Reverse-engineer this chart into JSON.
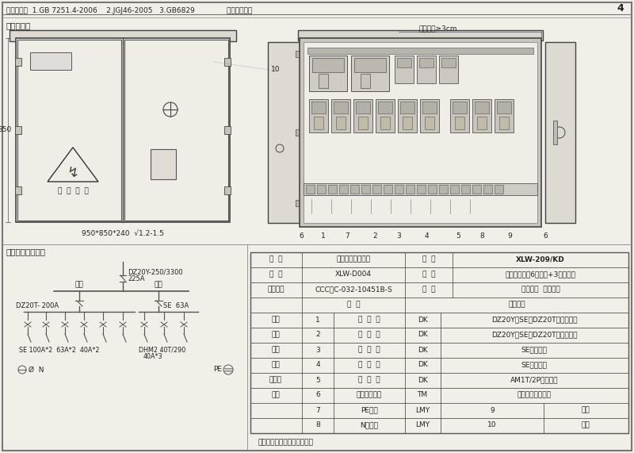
{
  "bg_color": "#f2efe9",
  "border_color": "#555555",
  "text_color": "#222222",
  "page_num": "4",
  "header_text": "执行标准：  1.GB 7251.4-2006    2.JGJ46-2005   3.GB6829              壳体颜色：黄",
  "section1_title": "总装配图：",
  "section2_title": "电器连接原理图：",
  "dim_label": "950*850*240  √1.2-1.5",
  "height_label": "850",
  "num_label": "10",
  "component_spacing": "元件间距≥3cm",
  "bottom_numbers": [
    "6",
    "1",
    "7",
    "2",
    "3",
    "4",
    "5",
    "8",
    "9",
    "6"
  ],
  "footer_text": "哈尔滨市龙瑞电气成套设备厂",
  "table_rows": [
    [
      "名  称",
      "建筑施工用配电筱",
      "型  号",
      "XLW-209/KD"
    ],
    [
      "图  号",
      "XLW-D004",
      "规  格",
      "级分配电筱（6路动力+3路照明）"
    ],
    [
      "试验报告",
      "CCC：C-032-10451B-S",
      "用  途",
      "施工现场  级分配电"
    ],
    [
      "",
      "序  号",
      "主要配件",
      "",
      ""
    ],
    [
      "设计",
      "1",
      "断  路  器",
      "DK",
      "DZ20Y（SE、DZ20T）透明系列"
    ],
    [
      "制图",
      "2",
      "断  路  器",
      "DK",
      "DZ20Y（SE、DZ20T）透明系列"
    ],
    [
      "校核",
      "3",
      "断  路  器",
      "DK",
      "SE透明系列"
    ],
    [
      "审核",
      "4",
      "断  路  器",
      "DK",
      "SE透明系列"
    ],
    [
      "标准化",
      "5",
      "断  路  器",
      "DK",
      "AM1T/2P透明系列"
    ],
    [
      "日期",
      "6",
      "裸铜加锡套接",
      "TM",
      "壳体与门的软连接"
    ],
    [
      "",
      "7",
      "PE端子",
      "LMY",
      "9",
      "线夹"
    ],
    [
      "",
      "8",
      "N线端子",
      "LMY",
      "10",
      "标牌"
    ]
  ],
  "circuit": {
    "power_label": "动力",
    "light_label": "照明",
    "main_breaker_label": "DZ20Y-250/3300",
    "main_breaker_label2": "225A",
    "left_breaker_label": "DZ20T- 200A",
    "right_breaker_label": "SE  63A",
    "bottom_left_labels": [
      "SE 100A*2",
      "63A*2",
      "40A*2"
    ],
    "bottom_right_label": "DHM2 40T/290",
    "bottom_right_label2": "40A*3",
    "n_label": "Ø  N",
    "pe_label": "PE"
  }
}
